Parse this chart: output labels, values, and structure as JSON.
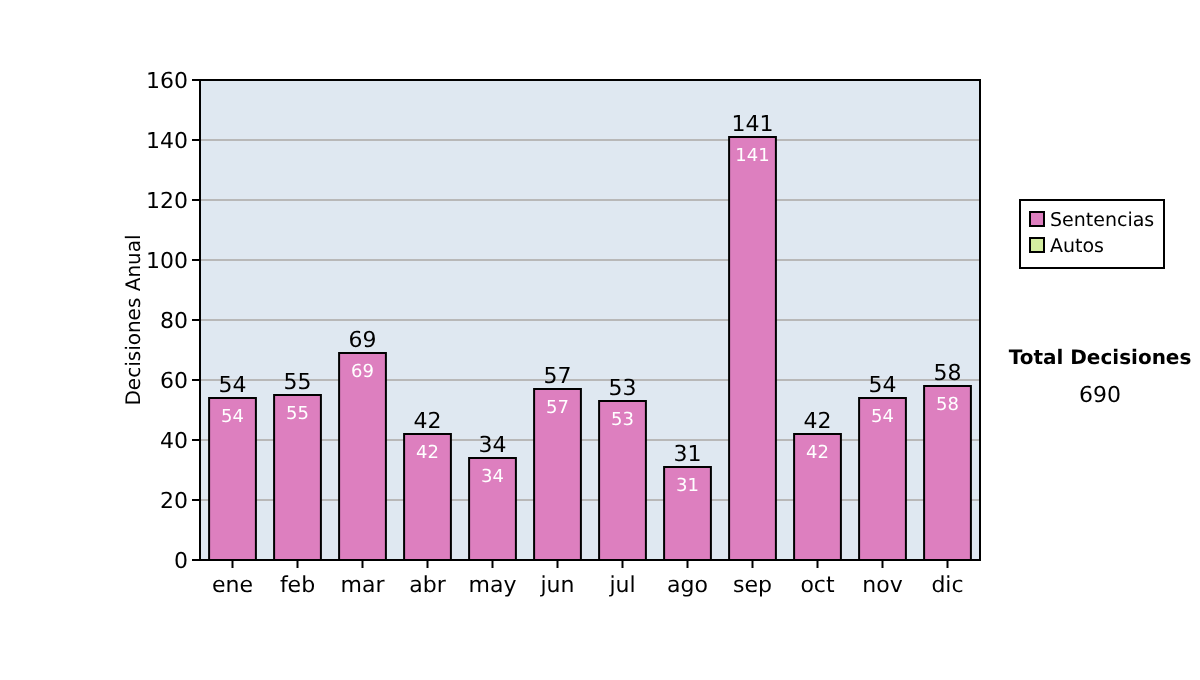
{
  "chart_data": {
    "type": "bar",
    "stacked": true,
    "ylabel": "Decisiones Anual",
    "categories": [
      "ene",
      "feb",
      "mar",
      "abr",
      "may",
      "jun",
      "jul",
      "ago",
      "sep",
      "oct",
      "nov",
      "dic"
    ],
    "series": [
      {
        "name": "Sentencias",
        "color": "#dd7fbf",
        "values": [
          54,
          55,
          69,
          42,
          34,
          57,
          53,
          31,
          141,
          42,
          54,
          58
        ]
      },
      {
        "name": "Autos",
        "color": "#d4eea0",
        "values": [
          null,
          null,
          null,
          null,
          null,
          null,
          null,
          null,
          null,
          null,
          null,
          null
        ]
      }
    ],
    "totals": [
      "54",
      "55",
      "69",
      "42",
      "34",
      "57",
      "53",
      "31",
      "141",
      "42",
      "54",
      "58"
    ],
    "data_labels": true,
    "ylim": [
      0,
      160
    ],
    "yticks": [
      0,
      20,
      40,
      60,
      80,
      100,
      120,
      140,
      160
    ],
    "grid": "y",
    "legend": "right",
    "annotations": [
      "Total Decisiones",
      "690"
    ]
  }
}
